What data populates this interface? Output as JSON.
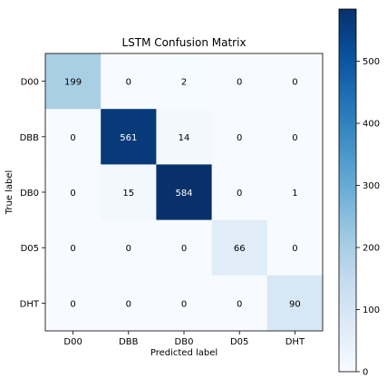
{
  "chart_data": {
    "type": "heatmap",
    "title": "LSTM Confusion Matrix",
    "xlabel": "Predicted label",
    "ylabel": "True label",
    "x_categories": [
      "D00",
      "DBB",
      "DB0",
      "D05",
      "DHT"
    ],
    "y_categories": [
      "D00",
      "DBB",
      "DB0",
      "D05",
      "DHT"
    ],
    "values": [
      [
        199,
        0,
        2,
        0,
        0
      ],
      [
        0,
        561,
        14,
        0,
        0
      ],
      [
        0,
        15,
        584,
        0,
        1
      ],
      [
        0,
        0,
        0,
        66,
        0
      ],
      [
        0,
        0,
        0,
        0,
        90
      ]
    ],
    "colormap": "Blues",
    "color_low": "#f7fbff",
    "color_high": "#08306b",
    "text_color_dark": "#000000",
    "text_color_light": "#ffffff",
    "colorbar": {
      "range": [
        0,
        584
      ],
      "ticks": [
        0,
        100,
        200,
        300,
        400,
        500
      ]
    }
  }
}
